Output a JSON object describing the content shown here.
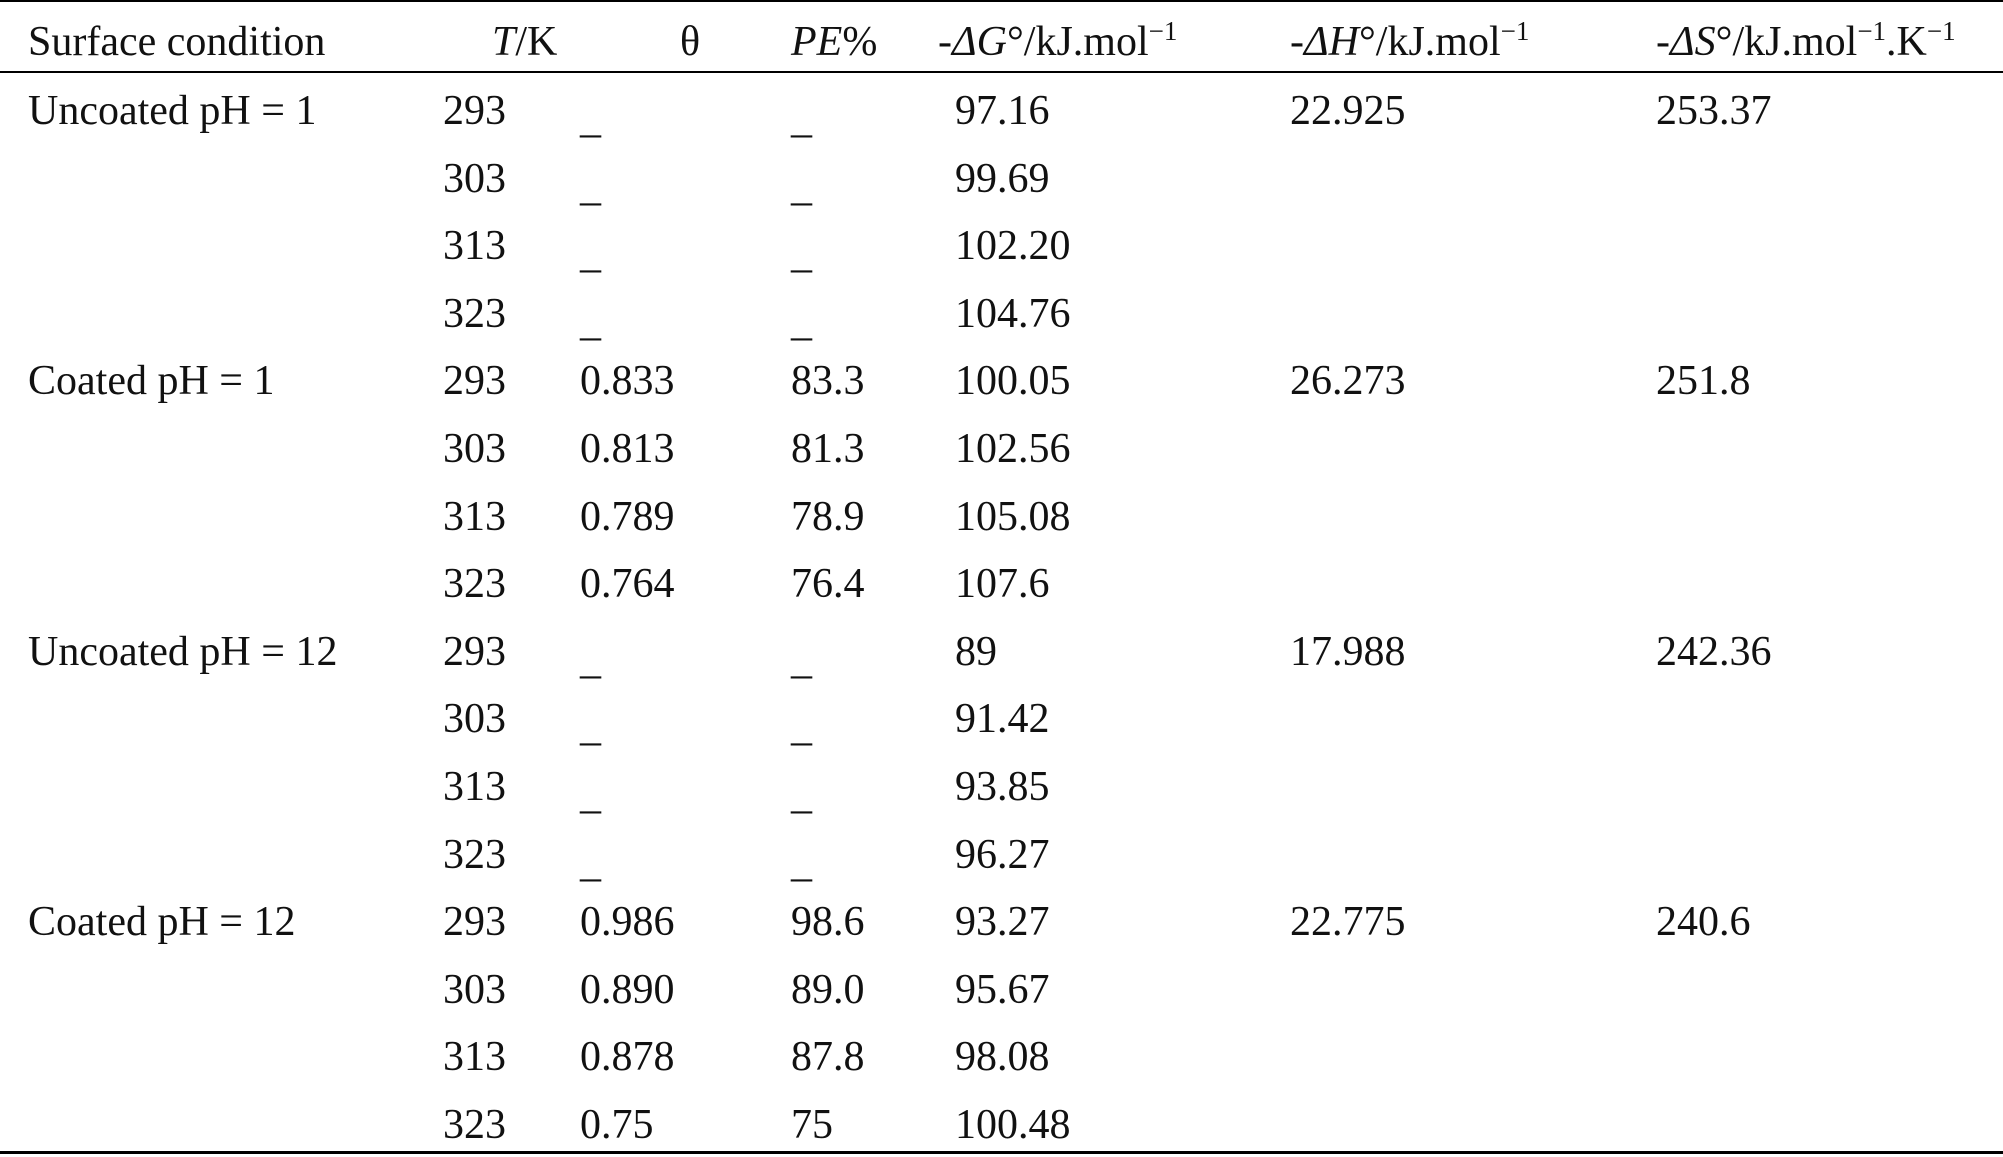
{
  "table": {
    "header": [
      [
        "Surface condition"
      ],
      [
        "T",
        "/K"
      ],
      [
        "θ"
      ],
      [
        "PE",
        "%"
      ],
      [
        "-",
        "ΔG",
        "°/kJ.mol",
        "−1"
      ],
      [
        "-",
        "ΔH",
        "°/kJ.mol",
        "−1"
      ],
      [
        "-",
        "ΔS",
        "°/kJ.mol",
        "−1",
        ".K",
        "−1"
      ]
    ],
    "groups": [
      {
        "condition": "Uncoated pH = 1",
        "dH": "22.925",
        "dS": "253.37",
        "rows": [
          [
            "293",
            "_",
            "_",
            "97.16"
          ],
          [
            "303",
            "_",
            "_",
            "99.69"
          ],
          [
            "313",
            "_",
            "_",
            "102.20"
          ],
          [
            "323",
            "_",
            "_",
            "104.76"
          ]
        ]
      },
      {
        "condition": "Coated pH = 1",
        "dH": "26.273",
        "dS": "251.8",
        "rows": [
          [
            "293",
            "0.833",
            "83.3",
            "100.05"
          ],
          [
            "303",
            "0.813",
            "81.3",
            "102.56"
          ],
          [
            "313",
            "0.789",
            "78.9",
            "105.08"
          ],
          [
            "323",
            "0.764",
            "76.4",
            "107.6"
          ]
        ]
      },
      {
        "condition": "Uncoated pH = 12",
        "dH": "17.988",
        "dS": "242.36",
        "rows": [
          [
            "293",
            "_",
            "_",
            "89"
          ],
          [
            "303",
            "_",
            "_",
            "91.42"
          ],
          [
            "313",
            "_",
            "_",
            "93.85"
          ],
          [
            "323",
            "_",
            "_",
            "96.27"
          ]
        ]
      },
      {
        "condition": "Coated pH = 12",
        "dH": "22.775",
        "dS": "240.6",
        "rows": [
          [
            "293",
            "0.986",
            "98.6",
            "93.27"
          ],
          [
            "303",
            "0.890",
            "89.0",
            "95.67"
          ],
          [
            "313",
            "0.878",
            "87.8",
            "98.08"
          ],
          [
            "323",
            "0.75",
            "75",
            "100.48"
          ]
        ]
      }
    ]
  }
}
